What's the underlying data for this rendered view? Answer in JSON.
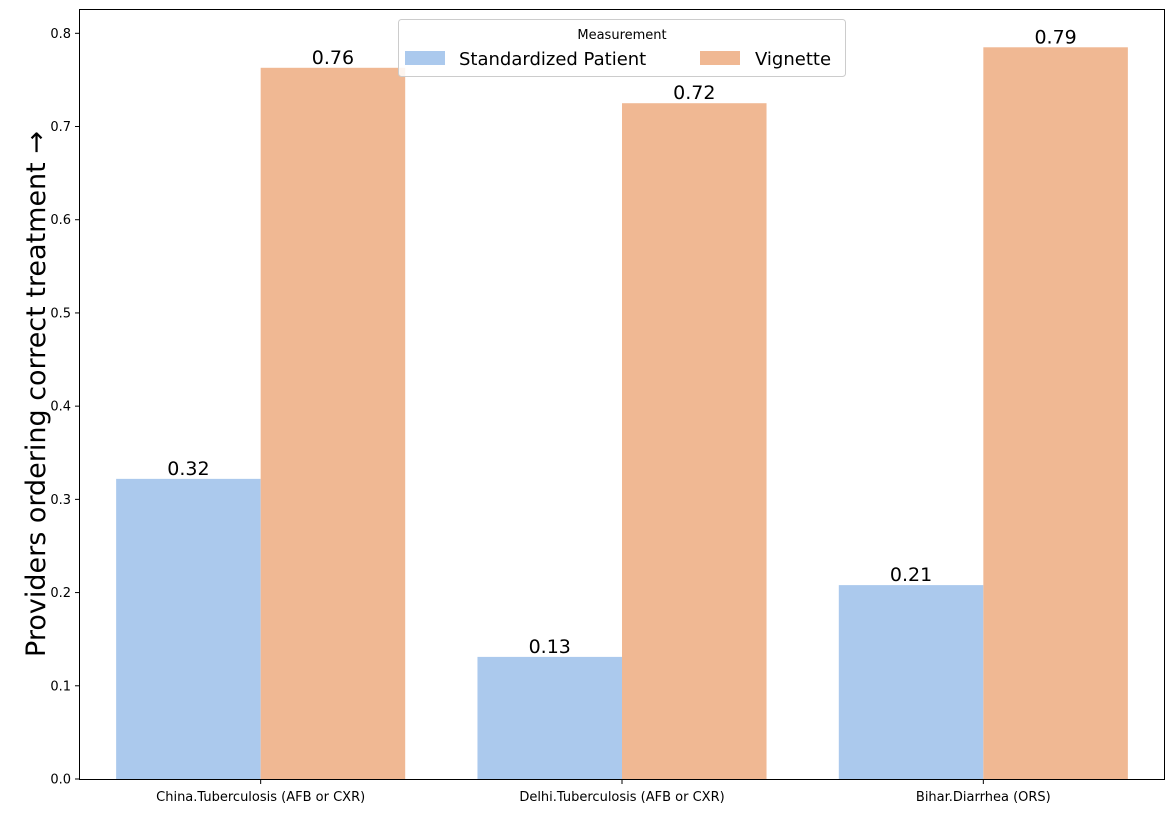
{
  "chart_data": {
    "type": "bar",
    "title": "",
    "xlabel": "",
    "ylabel": "Providers ordering correct treatment →",
    "categories": [
      "China.Tuberculosis (AFB or CXR)",
      "Delhi.Tuberculosis (AFB or CXR)",
      "Bihar.Diarrhea (ORS)"
    ],
    "series": [
      {
        "name": "Standardized Patient",
        "color": "#abc9ed",
        "values": [
          0.322,
          0.131,
          0.208
        ],
        "labels": [
          "0.32",
          "0.13",
          "0.21"
        ]
      },
      {
        "name": "Vignette",
        "color": "#f0b893",
        "values": [
          0.763,
          0.725,
          0.785
        ],
        "labels": [
          "0.76",
          "0.72",
          "0.79"
        ]
      }
    ],
    "ylim": [
      0,
      0.825
    ],
    "yticks": [
      "0.0",
      "0.1",
      "0.2",
      "0.3",
      "0.4",
      "0.5",
      "0.6",
      "0.7",
      "0.8"
    ],
    "legend": {
      "title": "Measurement",
      "placement": "top-center",
      "columns": 2
    },
    "grid": false
  }
}
